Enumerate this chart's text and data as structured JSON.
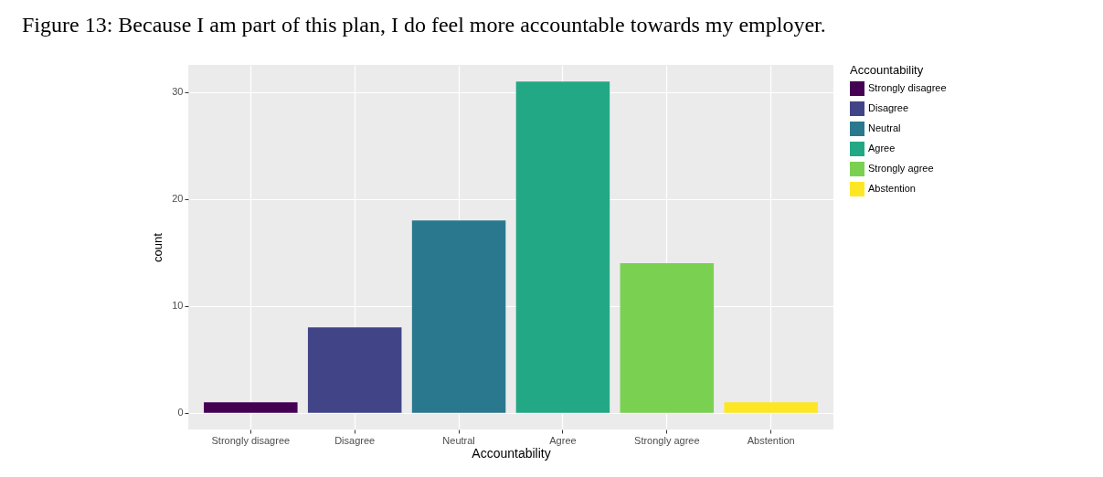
{
  "chart_data": {
    "type": "bar",
    "title": "Figure 13: Because I am part of this plan, I do feel more accountable towards my employer.",
    "xlabel": "Accountability",
    "ylabel": "count",
    "legend_title": "Accountability",
    "categories": [
      "Strongly disagree",
      "Disagree",
      "Neutral",
      "Agree",
      "Strongly agree",
      "Abstention"
    ],
    "series": [
      {
        "name": "Strongly disagree",
        "color": "#440154",
        "values": [
          1,
          null,
          null,
          null,
          null,
          null
        ]
      },
      {
        "name": "Disagree",
        "color": "#414487",
        "values": [
          null,
          8,
          null,
          null,
          null,
          null
        ]
      },
      {
        "name": "Neutral",
        "color": "#2a788e",
        "values": [
          null,
          null,
          18,
          null,
          null,
          null
        ]
      },
      {
        "name": "Agree",
        "color": "#22a884",
        "values": [
          null,
          null,
          null,
          31,
          null,
          null
        ]
      },
      {
        "name": "Strongly agree",
        "color": "#7ad151",
        "values": [
          null,
          null,
          null,
          null,
          14,
          null
        ]
      },
      {
        "name": "Abstention",
        "color": "#fde725",
        "values": [
          null,
          null,
          null,
          null,
          null,
          1
        ]
      }
    ],
    "ylim": [
      -1.55,
      32.55
    ],
    "yticks": [
      0,
      10,
      20,
      30
    ],
    "grid": true,
    "legend": "right"
  }
}
